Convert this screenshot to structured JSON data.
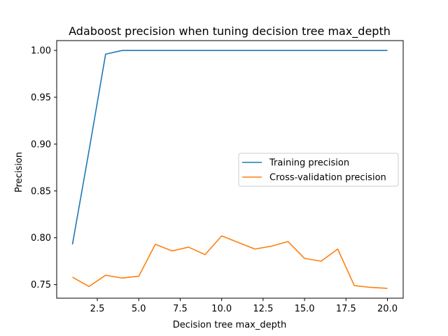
{
  "chart_data": {
    "type": "line",
    "title": "Adaboost precision when tuning decision tree max_depth",
    "xlabel": "Decision tree max_depth",
    "ylabel": "Precision",
    "xlim": [
      0.05,
      20.95
    ],
    "ylim": [
      0.7355,
      1.0105
    ],
    "xticks": [
      2.5,
      5.0,
      7.5,
      10.0,
      12.5,
      15.0,
      17.5,
      20.0
    ],
    "xtick_labels": [
      "2.5",
      "5.0",
      "7.5",
      "10.0",
      "12.5",
      "15.0",
      "17.5",
      "20.0"
    ],
    "yticks": [
      0.75,
      0.8,
      0.85,
      0.9,
      0.95,
      1.0
    ],
    "ytick_labels": [
      "0.75",
      "0.80",
      "0.85",
      "0.90",
      "0.95",
      "1.00"
    ],
    "grid": false,
    "legend_position": "center-right",
    "x": [
      1,
      2,
      3,
      4,
      5,
      6,
      7,
      8,
      9,
      10,
      11,
      12,
      13,
      14,
      15,
      16,
      17,
      18,
      19,
      20
    ],
    "series": [
      {
        "name": "Training precision",
        "color": "#1f77b4",
        "values": [
          0.793,
          0.893,
          0.996,
          1.0,
          1.0,
          1.0,
          1.0,
          1.0,
          1.0,
          1.0,
          1.0,
          1.0,
          1.0,
          1.0,
          1.0,
          1.0,
          1.0,
          1.0,
          1.0,
          1.0
        ]
      },
      {
        "name": "Cross-validation precision",
        "color": "#ff7f0e",
        "values": [
          0.758,
          0.748,
          0.76,
          0.757,
          0.759,
          0.793,
          0.786,
          0.79,
          0.782,
          0.802,
          0.795,
          0.788,
          0.791,
          0.796,
          0.778,
          0.775,
          0.788,
          0.749,
          0.747,
          0.746
        ]
      }
    ]
  }
}
